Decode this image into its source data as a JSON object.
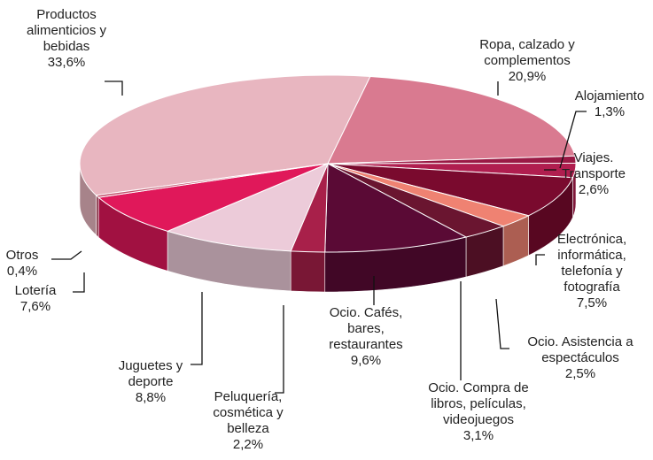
{
  "chart_data": {
    "type": "pie3d",
    "categories": [
      "Productos alimenticios y bebidas",
      "Ropa, calzado y complementos",
      "Alojamiento",
      "Viajes. Transporte",
      "Electrónica, informática, telefonía y fotografía",
      "Ocio. Asistencia a espectáculos",
      "Ocio. Compra de libros, películas, videojuegos",
      "Ocio. Cafés, bares, restaurantes",
      "Peluquería, cosmética y belleza",
      "Juguetes y deporte",
      "Lotería",
      "Otros"
    ],
    "values": [
      33.6,
      20.9,
      1.3,
      2.6,
      7.5,
      2.5,
      3.1,
      9.6,
      2.2,
      8.8,
      7.6,
      0.4
    ],
    "value_labels": [
      "33,6%",
      "20,9%",
      "1,3%",
      "2,6%",
      "7,5%",
      "2,5%",
      "3,1%",
      "9,6%",
      "2,2%",
      "8,8%",
      "7,6%",
      "0,4%"
    ],
    "colors": [
      "#e8b6c0",
      "#d97a90",
      "#9a1a45",
      "#b01e4f",
      "#7a0a2e",
      "#ef8272",
      "#6a1530",
      "#5a0a35",
      "#a8204a",
      "#eccbd9",
      "#e0185a",
      "#c0506a"
    ]
  }
}
